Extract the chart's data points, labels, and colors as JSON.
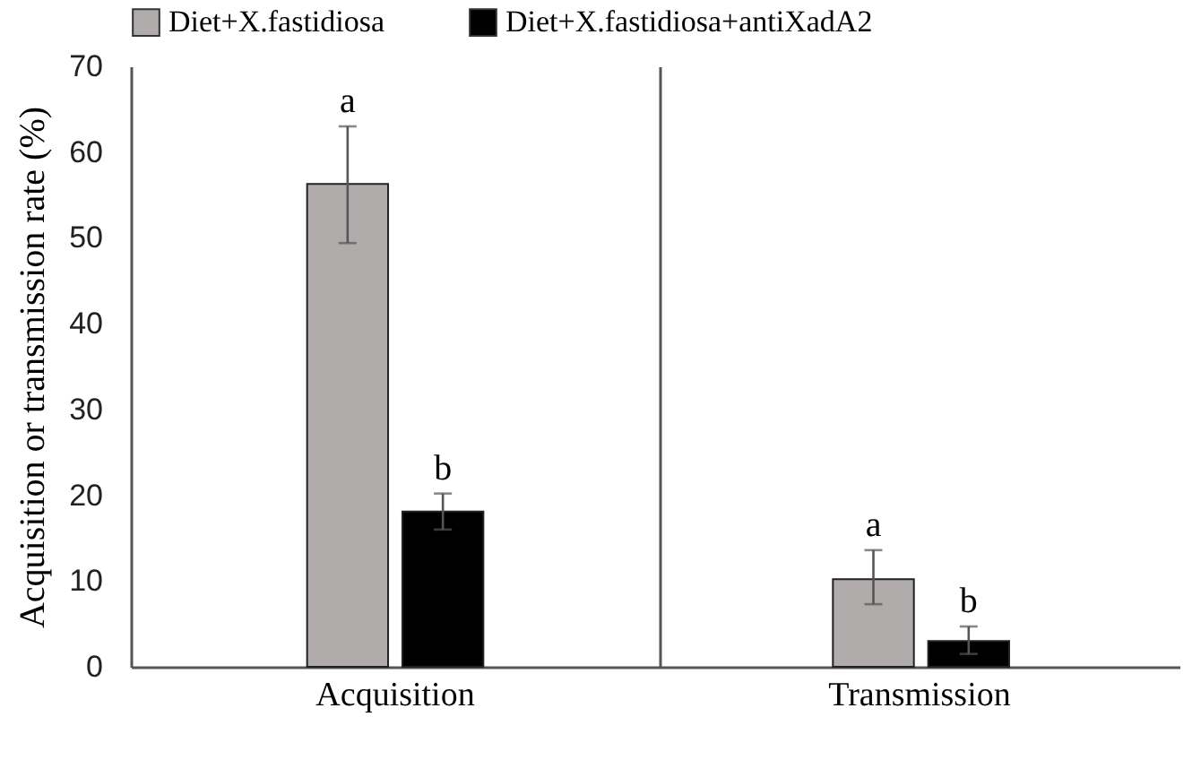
{
  "chart_data": [
    {
      "type": "bar",
      "ylabel": "Acquisition  or transmission rate (%)",
      "categories": [
        "Acquisition"
      ],
      "series": [
        {
          "name": "Diet+X.fastidiosa",
          "color": "#afacab",
          "values": [
            56.3
          ],
          "errors": [
            [
              49.4,
              63.0
            ]
          ]
        },
        {
          "name": "Diet+X.fastidiosa+antiXadA2",
          "color": "#000000",
          "values": [
            18.1
          ],
          "errors": [
            [
              16.0,
              20.2
            ]
          ]
        }
      ],
      "annotations": [
        "a",
        "b"
      ],
      "ylim": [
        0,
        70
      ],
      "yticks": [
        0,
        10,
        20,
        30,
        40,
        50,
        60,
        70
      ],
      "legend": "top"
    },
    {
      "type": "bar",
      "categories": [
        "Transmission"
      ],
      "series": [
        {
          "color": "#afacab",
          "values": [
            10.2
          ],
          "errors": [
            [
              7.3,
              13.6
            ]
          ]
        },
        {
          "color": "#000000",
          "values": [
            3.0
          ],
          "errors": [
            [
              1.5,
              4.7
            ]
          ]
        }
      ],
      "annotations": [
        "a",
        "b"
      ],
      "ylim": [
        0,
        70
      ],
      "yticks": [
        0,
        10,
        20,
        30,
        40,
        50,
        60,
        70
      ],
      "tick_labels": "x"
    }
  ]
}
